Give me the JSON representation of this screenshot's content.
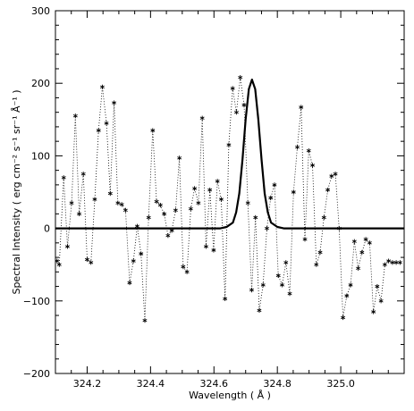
{
  "chart_data": {
    "type": "scatter",
    "title": "",
    "xlabel": "Wavelength ( Å )",
    "ylabel": "Spectral Intensity ( erg cm⁻² s⁻¹ sr⁻¹ Å⁻¹ )",
    "xlim": [
      324.1,
      325.2
    ],
    "ylim": [
      -200,
      300
    ],
    "x_ticks": [
      324.2,
      324.4,
      324.6,
      324.8,
      325.0
    ],
    "x_tick_labels": [
      "324.2",
      "324.4",
      "324.6",
      "324.8",
      "325.0"
    ],
    "y_ticks": [
      -200,
      -100,
      0,
      100,
      200,
      300
    ],
    "y_tick_labels": [
      "−200",
      "−100",
      "0",
      "100",
      "200",
      "300"
    ],
    "grid": false,
    "series": [
      {
        "style": "asterisk markers joined by dotted line",
        "color": "#000000",
        "x": [
          324.105,
          324.112,
          324.126,
          324.138,
          324.151,
          324.163,
          324.175,
          324.188,
          324.2,
          324.212,
          324.224,
          324.236,
          324.248,
          324.261,
          324.273,
          324.285,
          324.297,
          324.309,
          324.321,
          324.334,
          324.346,
          324.358,
          324.37,
          324.382,
          324.394,
          324.407,
          324.419,
          324.431,
          324.443,
          324.455,
          324.467,
          324.479,
          324.491,
          324.503,
          324.515,
          324.527,
          324.539,
          324.551,
          324.563,
          324.575,
          324.587,
          324.599,
          324.611,
          324.623,
          324.635,
          324.647,
          324.659,
          324.671,
          324.683,
          324.695,
          324.707,
          324.719,
          324.731,
          324.743,
          324.755,
          324.767,
          324.779,
          324.791,
          324.803,
          324.815,
          324.827,
          324.839,
          324.851,
          324.863,
          324.875,
          324.887,
          324.899,
          324.911,
          324.923,
          324.935,
          324.947,
          324.959,
          324.971,
          324.983,
          324.995,
          325.007,
          325.019,
          325.031,
          325.043,
          325.055,
          325.067,
          325.079,
          325.091,
          325.103,
          325.115,
          325.127,
          325.139,
          325.151,
          325.163,
          325.175,
          325.187
        ],
        "y": [
          -45,
          -50,
          70,
          -25,
          35,
          155,
          20,
          75,
          -43,
          -47,
          40,
          135,
          195,
          145,
          48,
          173,
          35,
          33,
          25,
          -75,
          -45,
          3,
          -35,
          -127,
          15,
          135,
          37,
          32,
          20,
          -10,
          -3,
          25,
          97,
          -53,
          -60,
          27,
          55,
          35,
          152,
          -25,
          53,
          -30,
          65,
          40,
          -97,
          115,
          193,
          160,
          208,
          170,
          35,
          -85,
          15,
          -113,
          -78,
          0,
          42,
          60,
          -65,
          -78,
          -47,
          -90,
          50,
          112,
          167,
          -15,
          107,
          87,
          -50,
          -33,
          15,
          53,
          72,
          75,
          0,
          -123,
          -93,
          -78,
          -18,
          -55,
          -33,
          -15,
          -20,
          -115,
          -80,
          -100,
          -50,
          -45,
          -47,
          -47,
          -47
        ]
      },
      {
        "style": "solid line (gaussian fit)",
        "color": "#000000",
        "x": [
          324.1,
          324.62,
          324.64,
          324.66,
          324.67,
          324.68,
          324.69,
          324.7,
          324.71,
          324.72,
          324.73,
          324.74,
          324.75,
          324.76,
          324.77,
          324.78,
          324.8,
          324.82,
          325.2
        ],
        "y": [
          0,
          0,
          2,
          8,
          22,
          48,
          95,
          150,
          192,
          205,
          192,
          150,
          95,
          48,
          22,
          8,
          2,
          0,
          0
        ]
      }
    ]
  }
}
